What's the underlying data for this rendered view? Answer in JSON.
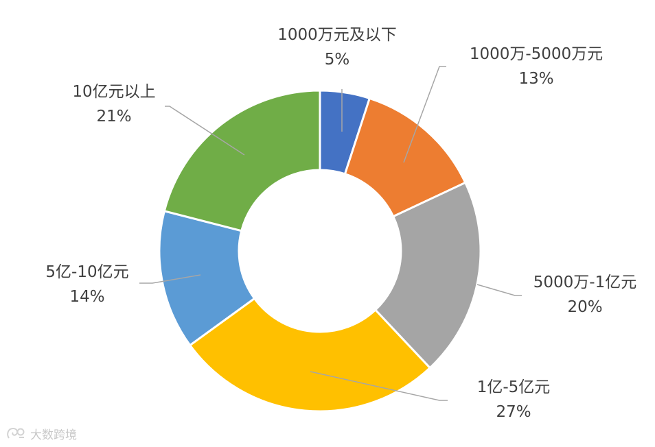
{
  "chart_data": {
    "type": "pie",
    "categories": [
      "1000万元及以下",
      "1000万-5000万元",
      "5000万-1亿元",
      "1亿-5亿元",
      "5亿-10亿元",
      "10亿元以上"
    ],
    "values": [
      5,
      13,
      20,
      27,
      14,
      21
    ],
    "value_labels": [
      "5%",
      "13%",
      "20%",
      "27%",
      "14%",
      "21%"
    ],
    "colors": [
      "#4472C4",
      "#ED7D31",
      "#A5A5A5",
      "#FFC000",
      "#5B9BD5",
      "#70AD47"
    ]
  },
  "watermark": {
    "text": "大数跨境"
  }
}
